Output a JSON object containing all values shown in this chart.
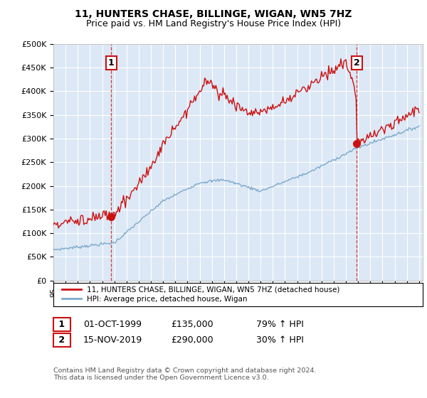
{
  "title": "11, HUNTERS CHASE, BILLINGE, WIGAN, WN5 7HZ",
  "subtitle": "Price paid vs. HM Land Registry's House Price Index (HPI)",
  "ylim": [
    0,
    500000
  ],
  "yticks": [
    0,
    50000,
    100000,
    150000,
    200000,
    250000,
    300000,
    350000,
    400000,
    450000,
    500000
  ],
  "ytick_labels": [
    "£0",
    "£50K",
    "£100K",
    "£150K",
    "£200K",
    "£250K",
    "£300K",
    "£350K",
    "£400K",
    "£450K",
    "£500K"
  ],
  "sale1_date": 1999.75,
  "sale1_price": 135000,
  "sale1_label": "1",
  "sale2_date": 2019.875,
  "sale2_price": 290000,
  "sale2_label": "2",
  "line1_color": "#cc1111",
  "line2_color": "#7eaacc",
  "annotation_box_color": "#cc1111",
  "legend_label1": "11, HUNTERS CHASE, BILLINGE, WIGAN, WN5 7HZ (detached house)",
  "legend_label2": "HPI: Average price, detached house, Wigan",
  "table_row1": [
    "1",
    "01-OCT-1999",
    "£135,000",
    "79% ↑ HPI"
  ],
  "table_row2": [
    "2",
    "15-NOV-2019",
    "£290,000",
    "30% ↑ HPI"
  ],
  "footnote": "Contains HM Land Registry data © Crown copyright and database right 2024.\nThis data is licensed under the Open Government Licence v3.0.",
  "bg_color": "#ffffff",
  "plot_bg_color": "#dce8f5",
  "grid_color": "#ffffff",
  "title_fontsize": 10,
  "subtitle_fontsize": 9
}
